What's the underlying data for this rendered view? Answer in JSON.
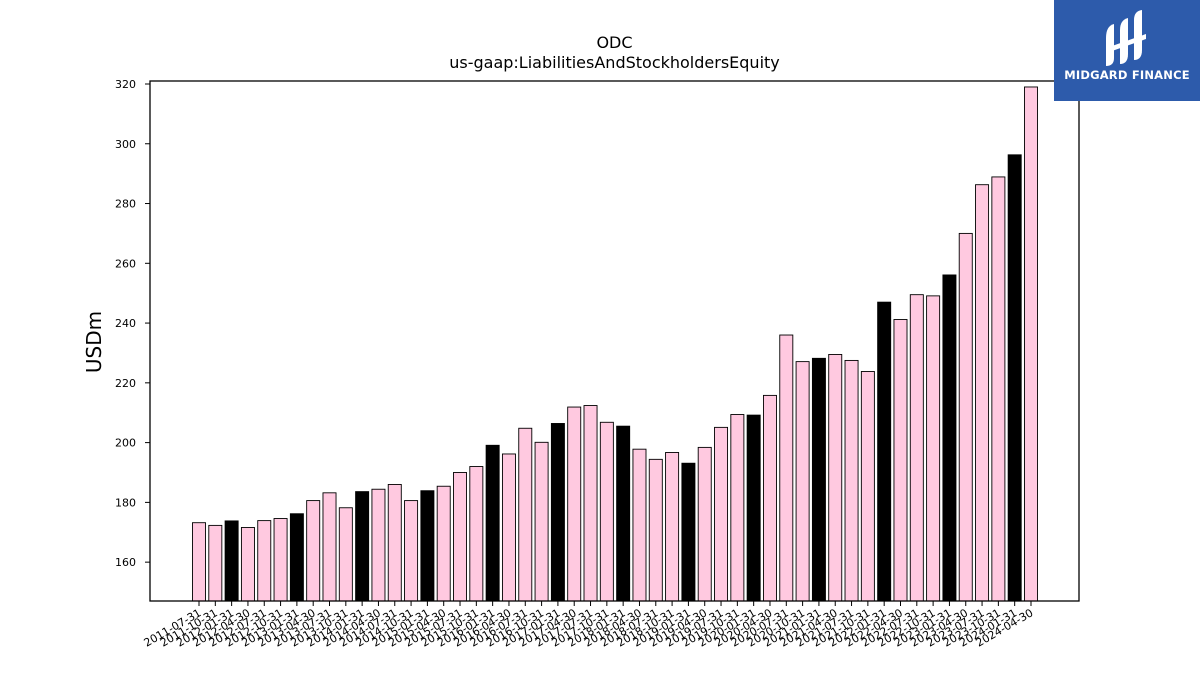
{
  "chart_data": {
    "type": "bar",
    "title": "ODC",
    "subtitle": "us-gaap:LiabilitiesAndStockholdersEquity",
    "xlabel": "",
    "ylabel": "USDm",
    "ylim": [
      147,
      321
    ],
    "yticks": [
      160,
      180,
      200,
      220,
      240,
      260,
      280,
      300,
      320
    ],
    "grid": false,
    "colors": {
      "quarter": "#ffc9e0",
      "year_end": "#000000",
      "edge": "#000000"
    },
    "categories": [
      "2011-07-31",
      "2011-10-31",
      "2012-01-31",
      "2012-04-30",
      "2012-07-31",
      "2012-10-31",
      "2013-01-31",
      "2013-04-30",
      "2013-07-31",
      "2013-10-31",
      "2014-01-31",
      "2014-04-30",
      "2014-07-31",
      "2014-10-31",
      "2015-01-31",
      "2015-04-30",
      "2015-07-31",
      "2015-10-31",
      "2016-01-31",
      "2016-04-30",
      "2016-07-31",
      "2016-10-31",
      "2017-01-31",
      "2017-04-30",
      "2017-07-31",
      "2017-10-31",
      "2018-01-31",
      "2018-04-30",
      "2018-07-31",
      "2018-10-31",
      "2019-01-31",
      "2019-04-30",
      "2019-07-31",
      "2019-10-31",
      "2020-01-31",
      "2020-04-30",
      "2020-07-31",
      "2020-10-31",
      "2021-01-31",
      "2021-04-30",
      "2021-07-31",
      "2021-10-31",
      "2022-01-31",
      "2022-04-30",
      "2022-07-31",
      "2022-10-31",
      "2023-01-31",
      "2023-04-30",
      "2023-07-31",
      "2023-10-31",
      "2024-01-31",
      "2024-04-30"
    ],
    "values": [
      173.2,
      172.3,
      173.8,
      171.6,
      173.9,
      174.6,
      176.2,
      180.6,
      183.2,
      178.2,
      183.6,
      184.4,
      186.0,
      180.6,
      183.9,
      185.4,
      190.0,
      192.0,
      199.1,
      196.2,
      204.8,
      200.1,
      206.4,
      211.9,
      212.4,
      206.8,
      205.5,
      197.8,
      194.4,
      196.7,
      193.1,
      198.4,
      205.1,
      209.4,
      209.2,
      215.8,
      236.0,
      227.1,
      228.2,
      229.5,
      227.5,
      223.8,
      247.0,
      241.2,
      249.5,
      249.1,
      256.1,
      270.0,
      286.3,
      288.9,
      296.3,
      319.0
    ],
    "year_end": [
      false,
      false,
      true,
      false,
      false,
      false,
      true,
      false,
      false,
      false,
      true,
      false,
      false,
      false,
      true,
      false,
      false,
      false,
      true,
      false,
      false,
      false,
      true,
      false,
      false,
      false,
      true,
      false,
      false,
      false,
      true,
      false,
      false,
      false,
      true,
      false,
      false,
      false,
      true,
      false,
      false,
      false,
      true,
      false,
      false,
      false,
      true,
      false,
      false,
      false,
      true,
      false
    ]
  },
  "logo": {
    "text": "MIDGARD FINANCE",
    "color": "#2d5bab"
  }
}
